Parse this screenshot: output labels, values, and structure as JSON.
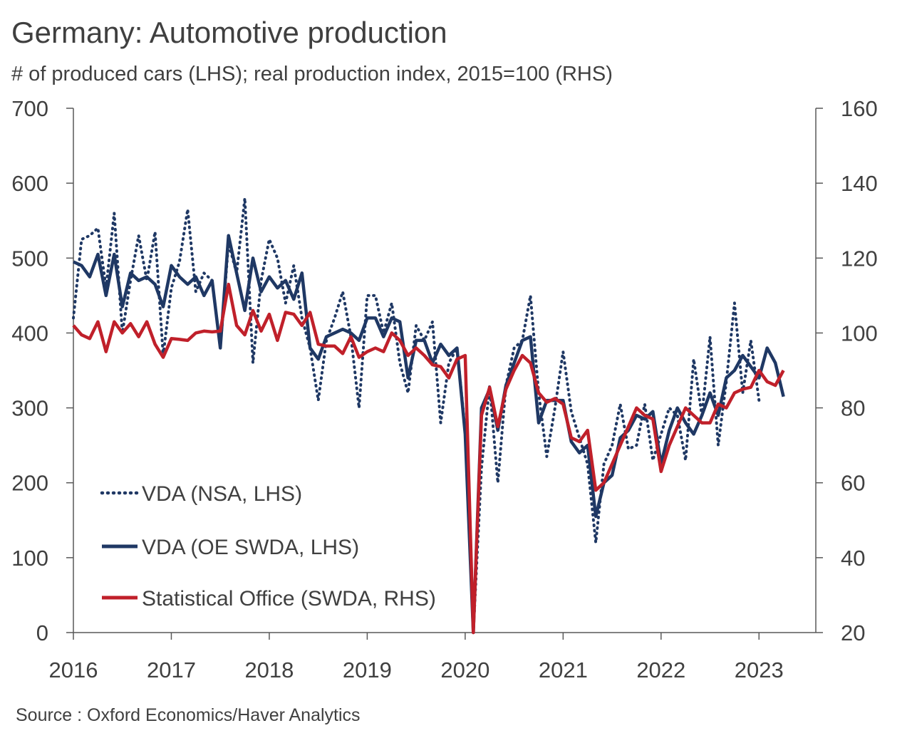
{
  "header": {
    "title": "Germany: Automotive production",
    "subtitle": "# of produced cars (LHS); real production index, 2015=100 (RHS)"
  },
  "footer": {
    "source": "Source : Oxford Economics/Haver Analytics"
  },
  "colors": {
    "nsa": "#1f3864",
    "swda": "#1f3864",
    "stat": "#c0202a",
    "axis": "#595959"
  },
  "chart_data": {
    "type": "line",
    "title": "Germany: Automotive production",
    "subtitle": "# of produced cars (LHS); real production index, 2015=100 (RHS)",
    "x_start": 2016.0,
    "x_step": 0.0833333,
    "xlim": [
      2016,
      2023.58
    ],
    "x_ticks": [
      2016,
      2017,
      2018,
      2019,
      2020,
      2021,
      2022,
      2023
    ],
    "x_tick_labels": [
      "2016",
      "2017",
      "2018",
      "2019",
      "2020",
      "2021",
      "2022",
      "2023"
    ],
    "ylim_left": [
      0,
      700
    ],
    "left_ticks": [
      0,
      100,
      200,
      300,
      400,
      500,
      600,
      700
    ],
    "left_tick_labels": [
      "0",
      "100",
      "200",
      "300",
      "400",
      "500",
      "600",
      "700"
    ],
    "ylim_right": [
      20,
      160
    ],
    "right_ticks": [
      20,
      40,
      60,
      80,
      100,
      120,
      140,
      160
    ],
    "right_tick_labels": [
      "20",
      "40",
      "60",
      "80",
      "100",
      "120",
      "140",
      "160"
    ],
    "legend_position": "bottom-left",
    "series": [
      {
        "name": "VDA (NSA, LHS)",
        "axis": "left",
        "style": "dotted",
        "values": [
          420,
          525,
          530,
          540,
          460,
          560,
          400,
          470,
          530,
          470,
          535,
          370,
          460,
          495,
          565,
          455,
          480,
          470,
          380,
          520,
          480,
          580,
          360,
          470,
          525,
          500,
          440,
          490,
          420,
          380,
          310,
          390,
          420,
          455,
          395,
          300,
          450,
          450,
          400,
          440,
          360,
          320,
          410,
          390,
          415,
          280,
          360,
          380,
          270,
          0,
          220,
          330,
          200,
          330,
          380,
          390,
          450,
          320,
          235,
          300,
          375,
          295,
          260,
          225,
          120,
          225,
          250,
          305,
          245,
          250,
          305,
          230,
          265,
          300,
          290,
          230,
          365,
          290,
          395,
          250,
          335,
          440,
          320,
          390,
          310
        ]
      },
      {
        "name": "VDA (OE SWDA, LHS)",
        "axis": "left",
        "style": "solid",
        "values": [
          495,
          490,
          475,
          505,
          450,
          505,
          435,
          480,
          470,
          475,
          465,
          435,
          490,
          475,
          465,
          475,
          450,
          470,
          380,
          530,
          480,
          430,
          500,
          455,
          475,
          460,
          470,
          445,
          480,
          380,
          365,
          395,
          400,
          405,
          400,
          390,
          420,
          420,
          395,
          420,
          415,
          340,
          390,
          390,
          360,
          385,
          370,
          380,
          265,
          0,
          300,
          325,
          270,
          330,
          360,
          390,
          395,
          280,
          310,
          310,
          310,
          255,
          240,
          250,
          155,
          200,
          210,
          260,
          270,
          290,
          285,
          295,
          225,
          270,
          300,
          280,
          265,
          290,
          320,
          290,
          340,
          350,
          370,
          355,
          340,
          380,
          360,
          315
        ]
      },
      {
        "name": "Statistical Office (SWDA, RHS)",
        "axis": "right",
        "style": "solid",
        "values": [
          102,
          99.5,
          98.5,
          103,
          95,
          103,
          100,
          102.5,
          99,
          103,
          97,
          93.5,
          98.5,
          98.3,
          98,
          100,
          100.5,
          100.3,
          100.5,
          113,
          102,
          99.5,
          106,
          100.5,
          105,
          98,
          105.5,
          105,
          102,
          105.5,
          97,
          96.5,
          96.5,
          94.5,
          99,
          93.5,
          95,
          96,
          95,
          100,
          98,
          94,
          96,
          94,
          91.5,
          91,
          88,
          93,
          94,
          20,
          78,
          85.5,
          75,
          85,
          90,
          94,
          92,
          84,
          81.5,
          82.5,
          81,
          72,
          71,
          74,
          58,
          60,
          65,
          70,
          75,
          80,
          78,
          77,
          63,
          70,
          75,
          80,
          78,
          76,
          76,
          81,
          80,
          84,
          85,
          85.5,
          90,
          87,
          86,
          90
        ]
      }
    ]
  }
}
